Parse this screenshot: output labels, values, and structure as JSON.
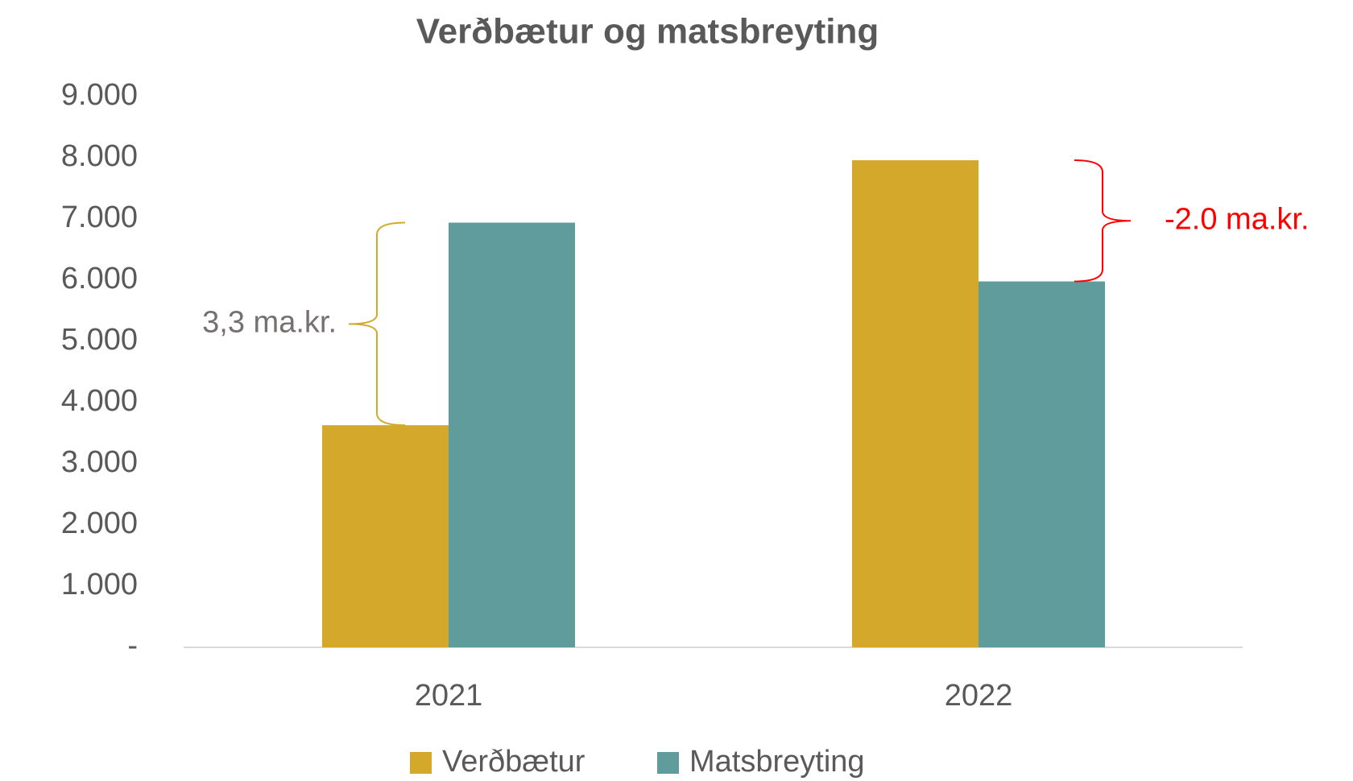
{
  "chart_data": {
    "type": "bar",
    "title": "Verðbætur og matsbreyting",
    "categories": [
      "2021",
      "2022"
    ],
    "series": [
      {
        "name": "Verðbætur",
        "color": "#d4a82a",
        "values": [
          3630,
          7960
        ]
      },
      {
        "name": "Matsbreyting",
        "color": "#5f9c9b",
        "values": [
          6940,
          5980
        ]
      }
    ],
    "ylim": [
      0,
      9000
    ],
    "yticks": [
      {
        "value": 0,
        "label": "-"
      },
      {
        "value": 1000,
        "label": "1.000"
      },
      {
        "value": 2000,
        "label": "2.000"
      },
      {
        "value": 3000,
        "label": "3.000"
      },
      {
        "value": 4000,
        "label": "4.000"
      },
      {
        "value": 5000,
        "label": "5.000"
      },
      {
        "value": 6000,
        "label": "6.000"
      },
      {
        "value": 7000,
        "label": "7.000"
      },
      {
        "value": 8000,
        "label": "8.000"
      },
      {
        "value": 9000,
        "label": "9.000"
      }
    ],
    "annotations": [
      "3,3 ma.kr.",
      "-2.0 ma.kr."
    ],
    "legend": "bottom"
  }
}
